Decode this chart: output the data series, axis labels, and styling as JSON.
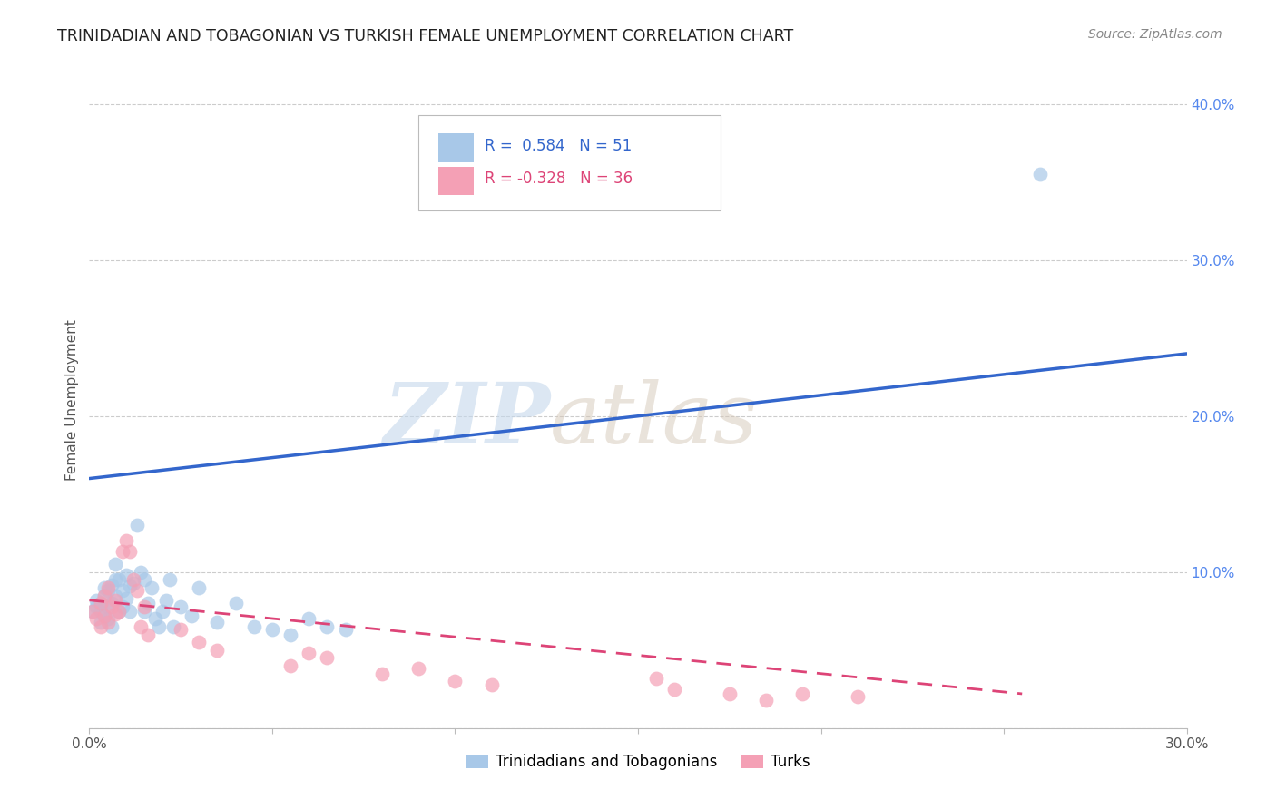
{
  "title": "TRINIDADIAN AND TOBAGONIAN VS TURKISH FEMALE UNEMPLOYMENT CORRELATION CHART",
  "source": "Source: ZipAtlas.com",
  "ylabel": "Female Unemployment",
  "xlim": [
    0.0,
    0.3
  ],
  "ylim": [
    0.0,
    0.42
  ],
  "xticks": [
    0.0,
    0.05,
    0.1,
    0.15,
    0.2,
    0.25,
    0.3
  ],
  "yticks": [
    0.0,
    0.1,
    0.2,
    0.3,
    0.4
  ],
  "ytick_labels": [
    "",
    "10.0%",
    "20.0%",
    "30.0%",
    "40.0%"
  ],
  "xtick_labels": [
    "0.0%",
    "",
    "",
    "",
    "",
    "",
    "30.0%"
  ],
  "legend_r_blue": "R =  0.584",
  "legend_n_blue": "N = 51",
  "legend_r_pink": "R = -0.328",
  "legend_n_pink": "N = 36",
  "legend_label_blue": "Trinidadians and Tobagonians",
  "legend_label_pink": "Turks",
  "color_blue": "#a8c8e8",
  "color_pink": "#f4a0b5",
  "line_color_blue": "#3366cc",
  "line_color_pink": "#dd4477",
  "watermark_zip": "ZIP",
  "watermark_atlas": "atlas",
  "background_color": "#ffffff",
  "blue_scatter_x": [
    0.001,
    0.002,
    0.002,
    0.003,
    0.003,
    0.003,
    0.004,
    0.004,
    0.004,
    0.005,
    0.005,
    0.005,
    0.006,
    0.006,
    0.006,
    0.007,
    0.007,
    0.007,
    0.008,
    0.008,
    0.009,
    0.009,
    0.01,
    0.01,
    0.011,
    0.011,
    0.012,
    0.013,
    0.014,
    0.015,
    0.015,
    0.016,
    0.017,
    0.018,
    0.019,
    0.02,
    0.021,
    0.022,
    0.023,
    0.025,
    0.028,
    0.03,
    0.035,
    0.04,
    0.045,
    0.05,
    0.055,
    0.06,
    0.065,
    0.07,
    0.26
  ],
  "blue_scatter_y": [
    0.075,
    0.078,
    0.082,
    0.068,
    0.075,
    0.08,
    0.072,
    0.085,
    0.09,
    0.07,
    0.078,
    0.088,
    0.065,
    0.08,
    0.092,
    0.095,
    0.085,
    0.105,
    0.075,
    0.095,
    0.088,
    0.078,
    0.083,
    0.098,
    0.091,
    0.075,
    0.093,
    0.13,
    0.1,
    0.095,
    0.075,
    0.08,
    0.09,
    0.07,
    0.065,
    0.075,
    0.082,
    0.095,
    0.065,
    0.078,
    0.072,
    0.09,
    0.068,
    0.08,
    0.065,
    0.063,
    0.06,
    0.07,
    0.065,
    0.063,
    0.355
  ],
  "pink_scatter_x": [
    0.001,
    0.002,
    0.003,
    0.003,
    0.004,
    0.004,
    0.005,
    0.005,
    0.006,
    0.007,
    0.007,
    0.008,
    0.009,
    0.01,
    0.011,
    0.012,
    0.013,
    0.014,
    0.015,
    0.016,
    0.025,
    0.03,
    0.035,
    0.055,
    0.06,
    0.065,
    0.08,
    0.09,
    0.1,
    0.11,
    0.155,
    0.16,
    0.175,
    0.185,
    0.195,
    0.21
  ],
  "pink_scatter_y": [
    0.075,
    0.07,
    0.08,
    0.065,
    0.072,
    0.085,
    0.068,
    0.09,
    0.078,
    0.082,
    0.073,
    0.075,
    0.113,
    0.12,
    0.113,
    0.095,
    0.088,
    0.065,
    0.078,
    0.06,
    0.063,
    0.055,
    0.05,
    0.04,
    0.048,
    0.045,
    0.035,
    0.038,
    0.03,
    0.028,
    0.032,
    0.025,
    0.022,
    0.018,
    0.022,
    0.02
  ],
  "blue_line_x": [
    0.0,
    0.3
  ],
  "blue_line_y": [
    0.16,
    0.24
  ],
  "pink_line_x": [
    0.0,
    0.255
  ],
  "pink_line_y": [
    0.082,
    0.022
  ]
}
